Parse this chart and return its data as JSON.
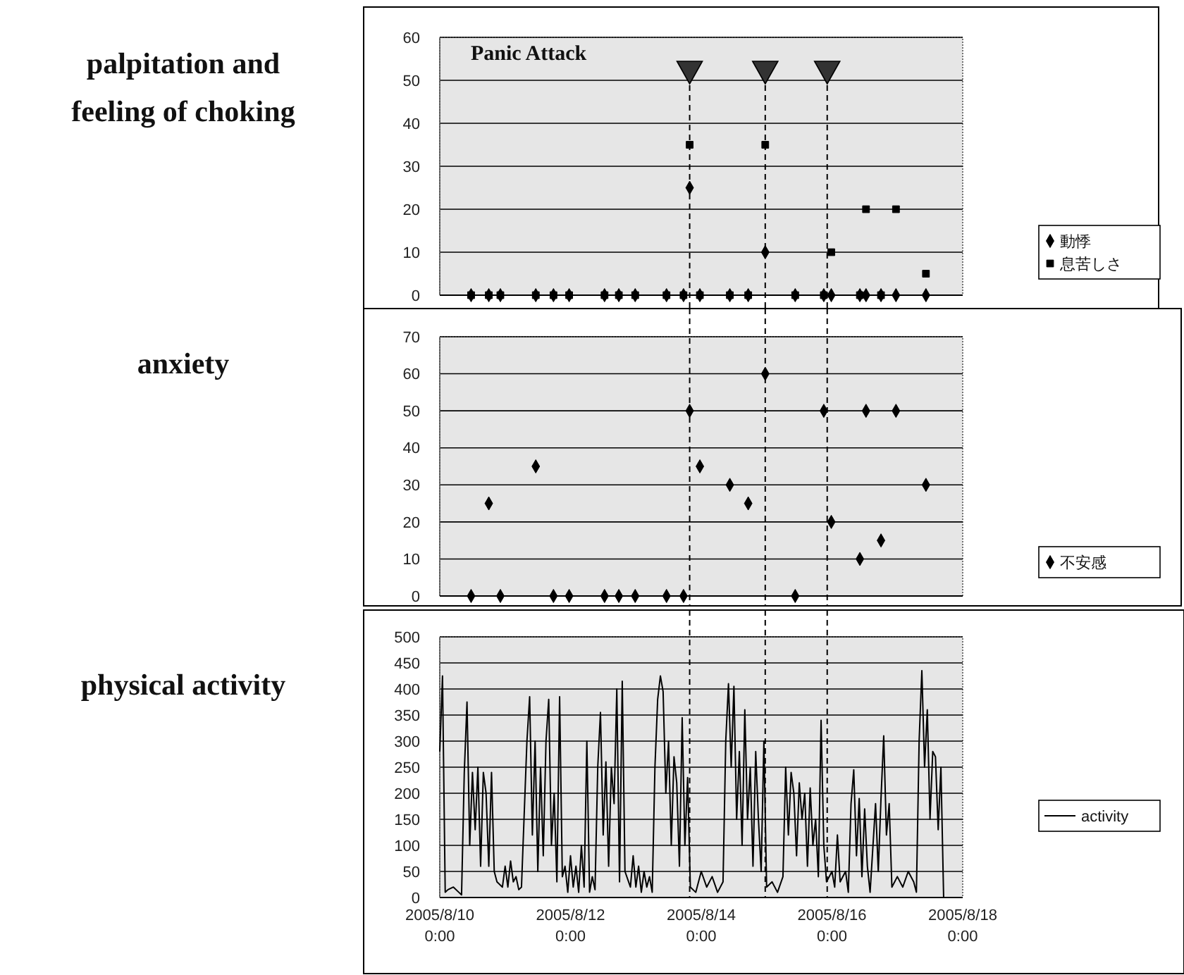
{
  "chart_data": [
    {
      "type": "scatter",
      "ylabel": "palpitation and feeling of choking",
      "x": [
        "2005-08-10T11:30",
        "2005-08-10T18:00",
        "2005-08-10T22:15",
        "2005-08-11T11:15",
        "2005-08-11T17:45",
        "2005-08-11T23:30",
        "2005-08-12T12:30",
        "2005-08-12T17:45",
        "2005-08-12T23:45",
        "2005-08-13T11:15",
        "2005-08-13T17:30",
        "2005-08-13T19:45",
        "2005-08-13T23:30",
        "2005-08-14T10:30",
        "2005-08-14T17:15",
        "2005-08-14T23:30",
        "2005-08-15T10:30",
        "2005-08-15T21:00",
        "2005-08-15T23:45",
        "2005-08-16T10:15",
        "2005-08-16T12:30",
        "2005-08-16T18:00",
        "2005-08-16T23:30",
        "2005-08-17T10:30"
      ],
      "series": [
        {
          "name": "動悸",
          "color": "#000000",
          "marker": "diamond",
          "values": [
            0,
            0,
            0,
            0,
            0,
            0,
            0,
            0,
            0,
            0,
            0,
            25,
            0,
            0,
            0,
            10,
            0,
            0,
            0,
            0,
            0,
            0,
            0,
            0
          ]
        },
        {
          "name": "息苦しさ",
          "color": "#000000",
          "marker": "square",
          "values": [
            0,
            0,
            0,
            0,
            0,
            0,
            0,
            0,
            0,
            0,
            0,
            35,
            0,
            0,
            0,
            35,
            0,
            0,
            10,
            0,
            20,
            0,
            20,
            5
          ]
        }
      ],
      "xlim": [
        "2005-08-10T00:00",
        "2005-08-18T00:00"
      ],
      "ylim": [
        0,
        60
      ],
      "yticks": [
        0,
        10,
        20,
        30,
        40,
        50,
        60
      ],
      "grid": "y",
      "legend": "right",
      "tick_labels": "y",
      "ref_lines": [
        {
          "axis": "x",
          "value": "2005-08-13T19:45",
          "color": "#000000",
          "line_style": "dashed"
        },
        {
          "axis": "x",
          "value": "2005-08-14T23:30",
          "color": "#000000",
          "line_style": "dashed"
        },
        {
          "axis": "x",
          "value": "2005-08-15T22:15",
          "color": "#000000",
          "line_style": "dashed"
        }
      ],
      "annotations": [
        "Panic Attack"
      ]
    },
    {
      "type": "scatter",
      "ylabel": "anxiety",
      "x": [
        "2005-08-10T11:30",
        "2005-08-10T18:00",
        "2005-08-10T22:15",
        "2005-08-11T11:15",
        "2005-08-11T17:45",
        "2005-08-11T23:30",
        "2005-08-12T12:30",
        "2005-08-12T17:45",
        "2005-08-12T23:45",
        "2005-08-13T11:15",
        "2005-08-13T17:30",
        "2005-08-13T19:45",
        "2005-08-13T23:30",
        "2005-08-14T10:30",
        "2005-08-14T17:15",
        "2005-08-14T23:30",
        "2005-08-15T10:30",
        "2005-08-15T21:00",
        "2005-08-15T23:45",
        "2005-08-16T10:15",
        "2005-08-16T12:30",
        "2005-08-16T18:00",
        "2005-08-16T23:30",
        "2005-08-17T10:30"
      ],
      "series": [
        {
          "name": "不安感",
          "color": "#000000",
          "marker": "diamond",
          "values": [
            0,
            25,
            0,
            35,
            0,
            0,
            0,
            0,
            0,
            0,
            0,
            50,
            35,
            30,
            25,
            60,
            0,
            50,
            20,
            10,
            50,
            15,
            50,
            30
          ]
        }
      ],
      "xlim": [
        "2005-08-10T00:00",
        "2005-08-18T00:00"
      ],
      "ylim": [
        0,
        70
      ],
      "yticks": [
        0,
        10,
        20,
        30,
        40,
        50,
        60,
        70
      ],
      "grid": "y",
      "legend": "right",
      "tick_labels": "y",
      "ref_lines": [
        {
          "axis": "x",
          "value": "2005-08-13T19:45",
          "color": "#000000",
          "line_style": "dashed"
        },
        {
          "axis": "x",
          "value": "2005-08-14T23:30",
          "color": "#000000",
          "line_style": "dashed"
        },
        {
          "axis": "x",
          "value": "2005-08-15T22:15",
          "color": "#000000",
          "line_style": "dashed"
        }
      ]
    },
    {
      "type": "line",
      "ylabel": "physical activity",
      "x": [
        "2005-08-10T00:00",
        "2005-08-10T01:00",
        "2005-08-10T02:00",
        "2005-08-10T03:00",
        "2005-08-10T05:00",
        "2005-08-10T07:00",
        "2005-08-10T08:00",
        "2005-08-10T09:00",
        "2005-08-10T10:00",
        "2005-08-10T11:00",
        "2005-08-10T12:00",
        "2005-08-10T13:00",
        "2005-08-10T14:00",
        "2005-08-10T15:00",
        "2005-08-10T16:00",
        "2005-08-10T17:00",
        "2005-08-10T18:00",
        "2005-08-10T19:00",
        "2005-08-10T20:00",
        "2005-08-10T21:00",
        "2005-08-10T23:00",
        "2005-08-11T00:00",
        "2005-08-11T01:00",
        "2005-08-11T02:00",
        "2005-08-11T03:00",
        "2005-08-11T04:00",
        "2005-08-11T05:00",
        "2005-08-11T06:00",
        "2005-08-11T08:00",
        "2005-08-11T09:00",
        "2005-08-11T10:00",
        "2005-08-11T11:00",
        "2005-08-11T12:00",
        "2005-08-11T13:00",
        "2005-08-11T14:00",
        "2005-08-11T15:00",
        "2005-08-11T16:00",
        "2005-08-11T17:00",
        "2005-08-11T18:00",
        "2005-08-11T19:00",
        "2005-08-11T20:00",
        "2005-08-11T21:00",
        "2005-08-11T22:00",
        "2005-08-11T23:00",
        "2005-08-12T00:00",
        "2005-08-12T01:00",
        "2005-08-12T02:00",
        "2005-08-12T03:00",
        "2005-08-12T04:00",
        "2005-08-12T05:00",
        "2005-08-12T06:00",
        "2005-08-12T07:00",
        "2005-08-12T08:00",
        "2005-08-12T09:00",
        "2005-08-12T10:00",
        "2005-08-12T11:00",
        "2005-08-12T12:00",
        "2005-08-12T13:00",
        "2005-08-12T14:00",
        "2005-08-12T15:00",
        "2005-08-12T16:00",
        "2005-08-12T17:00",
        "2005-08-12T18:00",
        "2005-08-12T19:00",
        "2005-08-12T20:00",
        "2005-08-12T22:00",
        "2005-08-12T23:00",
        "2005-08-13T00:00",
        "2005-08-13T01:00",
        "2005-08-13T02:00",
        "2005-08-13T03:00",
        "2005-08-13T04:00",
        "2005-08-13T05:00",
        "2005-08-13T06:00",
        "2005-08-13T07:00",
        "2005-08-13T08:00",
        "2005-08-13T09:00",
        "2005-08-13T10:00",
        "2005-08-13T11:00",
        "2005-08-13T12:00",
        "2005-08-13T13:00",
        "2005-08-13T14:00",
        "2005-08-13T15:00",
        "2005-08-13T16:00",
        "2005-08-13T17:00",
        "2005-08-13T18:00",
        "2005-08-13T19:00",
        "2005-08-13T20:00",
        "2005-08-13T22:00",
        "2005-08-14T00:00",
        "2005-08-14T02:00",
        "2005-08-14T04:00",
        "2005-08-14T06:00",
        "2005-08-14T08:00",
        "2005-08-14T09:00",
        "2005-08-14T10:00",
        "2005-08-14T11:00",
        "2005-08-14T12:00",
        "2005-08-14T13:00",
        "2005-08-14T14:00",
        "2005-08-14T15:00",
        "2005-08-14T16:00",
        "2005-08-14T17:00",
        "2005-08-14T18:00",
        "2005-08-14T19:00",
        "2005-08-14T20:00",
        "2005-08-14T21:00",
        "2005-08-14T22:00",
        "2005-08-14T23:00",
        "2005-08-15T00:00",
        "2005-08-15T02:00",
        "2005-08-15T04:00",
        "2005-08-15T06:00",
        "2005-08-15T07:00",
        "2005-08-15T08:00",
        "2005-08-15T09:00",
        "2005-08-15T10:00",
        "2005-08-15T11:00",
        "2005-08-15T12:00",
        "2005-08-15T13:00",
        "2005-08-15T14:00",
        "2005-08-15T15:00",
        "2005-08-15T16:00",
        "2005-08-15T17:00",
        "2005-08-15T18:00",
        "2005-08-15T19:00",
        "2005-08-15T20:00",
        "2005-08-15T21:00",
        "2005-08-15T22:00",
        "2005-08-16T00:00",
        "2005-08-16T01:00",
        "2005-08-16T02:00",
        "2005-08-16T03:00",
        "2005-08-16T05:00",
        "2005-08-16T06:00",
        "2005-08-16T07:00",
        "2005-08-16T08:00",
        "2005-08-16T09:00",
        "2005-08-16T10:00",
        "2005-08-16T11:00",
        "2005-08-16T12:00",
        "2005-08-16T13:00",
        "2005-08-16T14:00",
        "2005-08-16T16:00",
        "2005-08-16T17:00",
        "2005-08-16T18:00",
        "2005-08-16T19:00",
        "2005-08-16T20:00",
        "2005-08-16T21:00",
        "2005-08-16T22:00",
        "2005-08-17T00:00",
        "2005-08-17T02:00",
        "2005-08-17T04:00",
        "2005-08-17T06:00",
        "2005-08-17T07:00",
        "2005-08-17T08:00",
        "2005-08-17T09:00",
        "2005-08-17T10:00",
        "2005-08-17T11:00",
        "2005-08-17T12:00",
        "2005-08-17T13:00",
        "2005-08-17T14:00",
        "2005-08-17T15:00",
        "2005-08-17T16:00",
        "2005-08-17T17:00",
        "2005-08-17T23:00"
      ],
      "series": [
        {
          "name": "activity",
          "color": "#000000",
          "values": [
            280,
            425,
            10,
            15,
            20,
            10,
            5,
            240,
            375,
            100,
            240,
            130,
            250,
            60,
            240,
            200,
            60,
            240,
            50,
            30,
            20,
            60,
            20,
            70,
            30,
            40,
            15,
            20,
            300,
            385,
            120,
            300,
            50,
            250,
            80,
            300,
            380,
            100,
            200,
            30,
            385,
            40,
            60,
            10,
            80,
            20,
            60,
            10,
            100,
            20,
            300,
            10,
            40,
            15,
            250,
            355,
            120,
            260,
            60,
            250,
            180,
            400,
            30,
            415,
            50,
            20,
            80,
            20,
            60,
            10,
            50,
            20,
            40,
            10,
            250,
            380,
            425,
            395,
            200,
            300,
            100,
            270,
            220,
            60,
            345,
            100,
            230,
            20,
            10,
            50,
            20,
            40,
            10,
            30,
            300,
            410,
            250,
            405,
            150,
            280,
            100,
            360,
            150,
            250,
            60,
            280,
            150,
            50,
            300,
            20,
            30,
            10,
            40,
            250,
            120,
            240,
            200,
            80,
            220,
            150,
            200,
            60,
            210,
            100,
            150,
            40,
            340,
            100,
            30,
            50,
            20,
            120,
            30,
            50,
            10,
            180,
            245,
            80,
            190,
            40,
            170,
            60,
            10,
            180,
            50,
            190,
            310,
            120,
            180,
            20,
            40,
            20,
            50,
            30,
            10,
            300,
            435,
            250,
            360,
            150,
            280,
            270,
            130,
            250,
            0,
            0
          ]
        }
      ],
      "xlim": [
        "2005-08-10T00:00",
        "2005-08-18T00:00"
      ],
      "xticks": [
        {
          "value": "2005-08-10T00:00",
          "label": "2005/8/10 0:00"
        },
        {
          "value": "2005-08-12T00:00",
          "label": "2005/8/12 0:00"
        },
        {
          "value": "2005-08-14T00:00",
          "label": "2005/8/14 0:00"
        },
        {
          "value": "2005-08-16T00:00",
          "label": "2005/8/16 0:00"
        },
        {
          "value": "2005-08-18T00:00",
          "label": "2005/8/18 0:00"
        }
      ],
      "ylim": [
        0,
        500
      ],
      "yticks": [
        0,
        50,
        100,
        150,
        200,
        250,
        300,
        350,
        400,
        450,
        500
      ],
      "grid": "y",
      "legend": "right",
      "line_style": "solid",
      "ref_lines": [
        {
          "axis": "x",
          "value": "2005-08-13T19:45",
          "color": "#000000",
          "line_style": "dashed"
        },
        {
          "axis": "x",
          "value": "2005-08-14T23:30",
          "color": "#000000",
          "line_style": "dashed"
        },
        {
          "axis": "x",
          "value": "2005-08-15T22:15",
          "color": "#000000",
          "line_style": "dashed"
        }
      ]
    }
  ]
}
